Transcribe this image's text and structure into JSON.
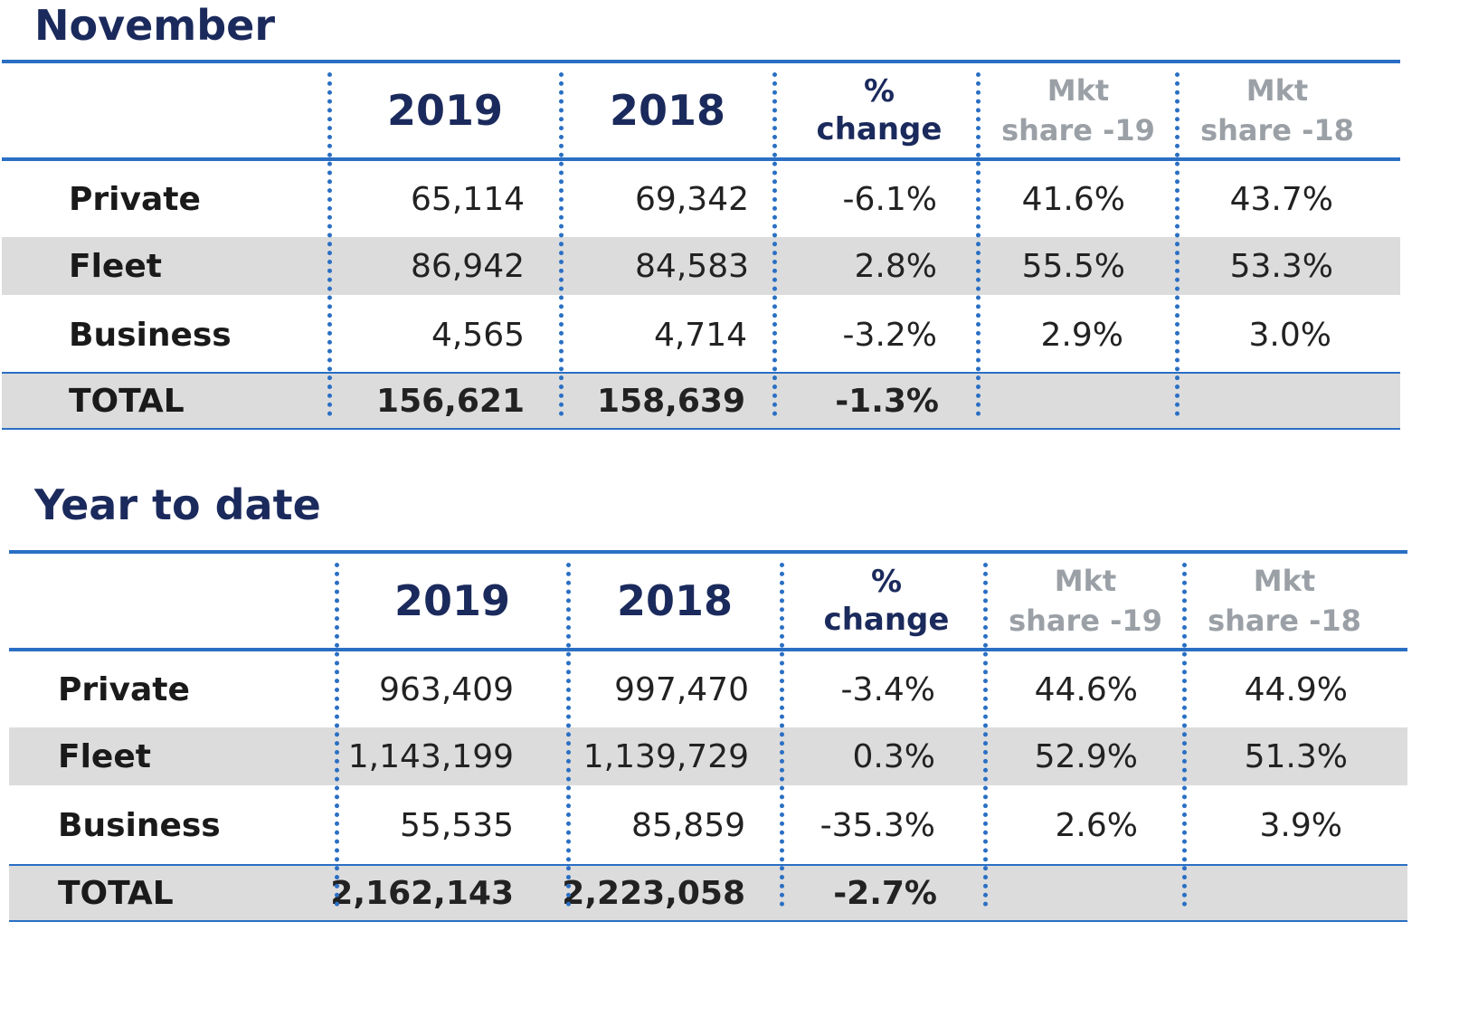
{
  "headers": {
    "col_2019": "2019",
    "col_2018": "2018",
    "pct_line1": "%",
    "pct_line2": "change",
    "mkt19_line1": "Mkt",
    "mkt19_line2": "share -19",
    "mkt18_line1": "Mkt",
    "mkt18_line2": "share -18"
  },
  "november": {
    "title": "November",
    "rows": [
      {
        "label": "Private",
        "v2019": "65,114",
        "v2018": "69,342",
        "pct": "-6.1%",
        "mkt19": "41.6%",
        "mkt18": "43.7%"
      },
      {
        "label": "Fleet",
        "v2019": "86,942",
        "v2018": "84,583",
        "pct": "2.8%",
        "mkt19": "55.5%",
        "mkt18": "53.3%"
      },
      {
        "label": "Business",
        "v2019": "4,565",
        "v2018": "4,714",
        "pct": "-3.2%",
        "mkt19": "2.9%",
        "mkt18": "3.0%"
      }
    ],
    "total": {
      "label": "TOTAL",
      "v2019": "156,621",
      "v2018": "158,639",
      "pct": "-1.3%"
    }
  },
  "ytd": {
    "title": "Year to date",
    "rows": [
      {
        "label": "Private",
        "v2019": "963,409",
        "v2018": "997,470",
        "pct": "-3.4%",
        "mkt19": "44.6%",
        "mkt18": "44.9%"
      },
      {
        "label": "Fleet",
        "v2019": "1,143,199",
        "v2018": "1,139,729",
        "pct": "0.3%",
        "mkt19": "52.9%",
        "mkt18": "51.3%"
      },
      {
        "label": "Business",
        "v2019": "55,535",
        "v2018": "85,859",
        "pct": "-35.3%",
        "mkt19": "2.6%",
        "mkt18": "3.9%"
      }
    ],
    "total": {
      "label": "TOTAL",
      "v2019": "2,162,143",
      "v2018": "2,223,058",
      "pct": "-2.7%"
    }
  },
  "colors": {
    "accent": "#2a6fc4",
    "heading": "#1b2a5c",
    "muted": "#9aa0a6",
    "shade": "#dcdcdc"
  }
}
